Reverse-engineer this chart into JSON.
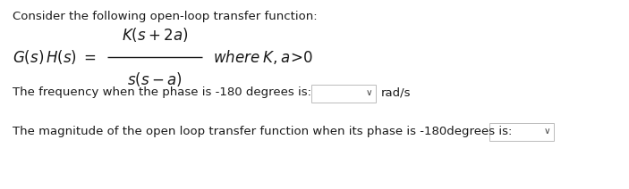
{
  "title_text": "Consider the following open-loop transfer function:",
  "freq_line": "The frequency when the phase is -180 degrees is:",
  "freq_unit": "rad/s",
  "mag_line": "The magnitude of the open loop transfer function when its phase is -180degrees is:",
  "bg_color": "#ffffff",
  "text_color": "#1a1a1a",
  "box_edge_color": "#bbbbbb",
  "font_size_main": 9.5,
  "font_size_math": 12,
  "fig_width": 7.03,
  "fig_height": 2.12,
  "dpi": 100
}
